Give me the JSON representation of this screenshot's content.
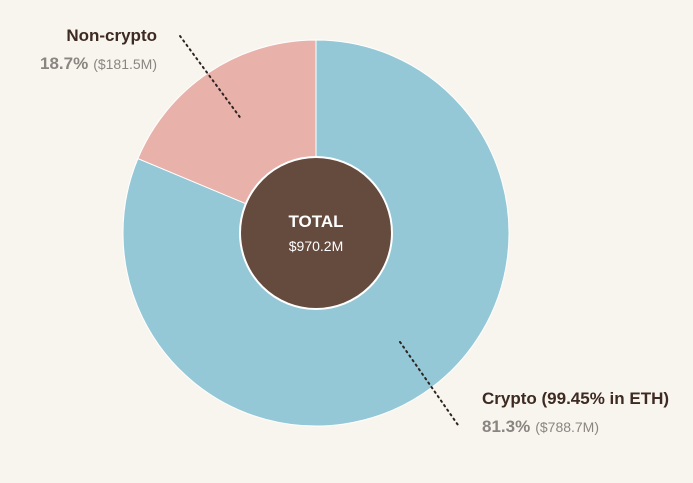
{
  "chart_data": {
    "type": "pie",
    "style": "donut",
    "center": {
      "title": "TOTAL",
      "value": "$970.2M"
    },
    "slices": [
      {
        "label": "Crypto (99.45% in ETH)",
        "percent": 81.3,
        "percent_label": "81.3%",
        "amount_label": "($788.7M)",
        "value_millions": 788.7,
        "color": "#94c8d7"
      },
      {
        "label": "Non-crypto",
        "percent": 18.7,
        "percent_label": "18.7%",
        "amount_label": "($181.5M)",
        "value_millions": 181.5,
        "color": "#e8b1aa"
      }
    ],
    "legend": "none",
    "center_color": "#654a3e"
  }
}
